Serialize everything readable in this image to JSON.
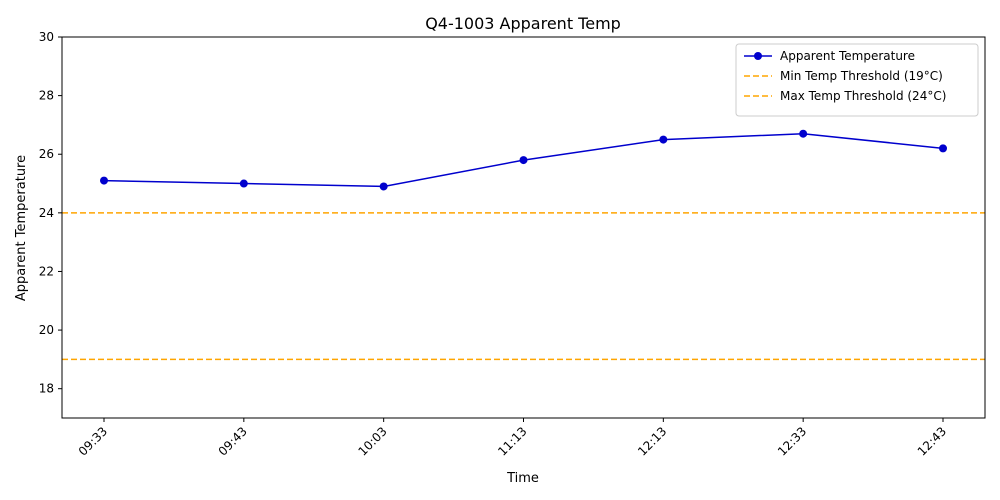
{
  "chart_data": {
    "type": "line",
    "title": "Q4-1003 Apparent Temp",
    "xlabel": "Time",
    "ylabel": "Apparent Temperature",
    "categories": [
      "09:33",
      "09:43",
      "10:03",
      "11:13",
      "12:13",
      "12:33",
      "12:43"
    ],
    "series": [
      {
        "name": "Apparent Temperature",
        "values": [
          25.1,
          25.0,
          24.9,
          25.8,
          26.5,
          26.7,
          26.2
        ],
        "color": "#0000cd"
      }
    ],
    "thresholds": [
      {
        "name": "Min Temp Threshold (19°C)",
        "value": 19,
        "color": "#ffa500",
        "style": "dashed"
      },
      {
        "name": "Max Temp Threshold (24°C)",
        "value": 24,
        "color": "#ffa500",
        "style": "dashed"
      }
    ],
    "ylim": [
      17,
      30
    ],
    "yticks": [
      18,
      20,
      22,
      24,
      26,
      28,
      30
    ],
    "grid": false,
    "legend": "top-right",
    "xtick_rotation": 45
  }
}
